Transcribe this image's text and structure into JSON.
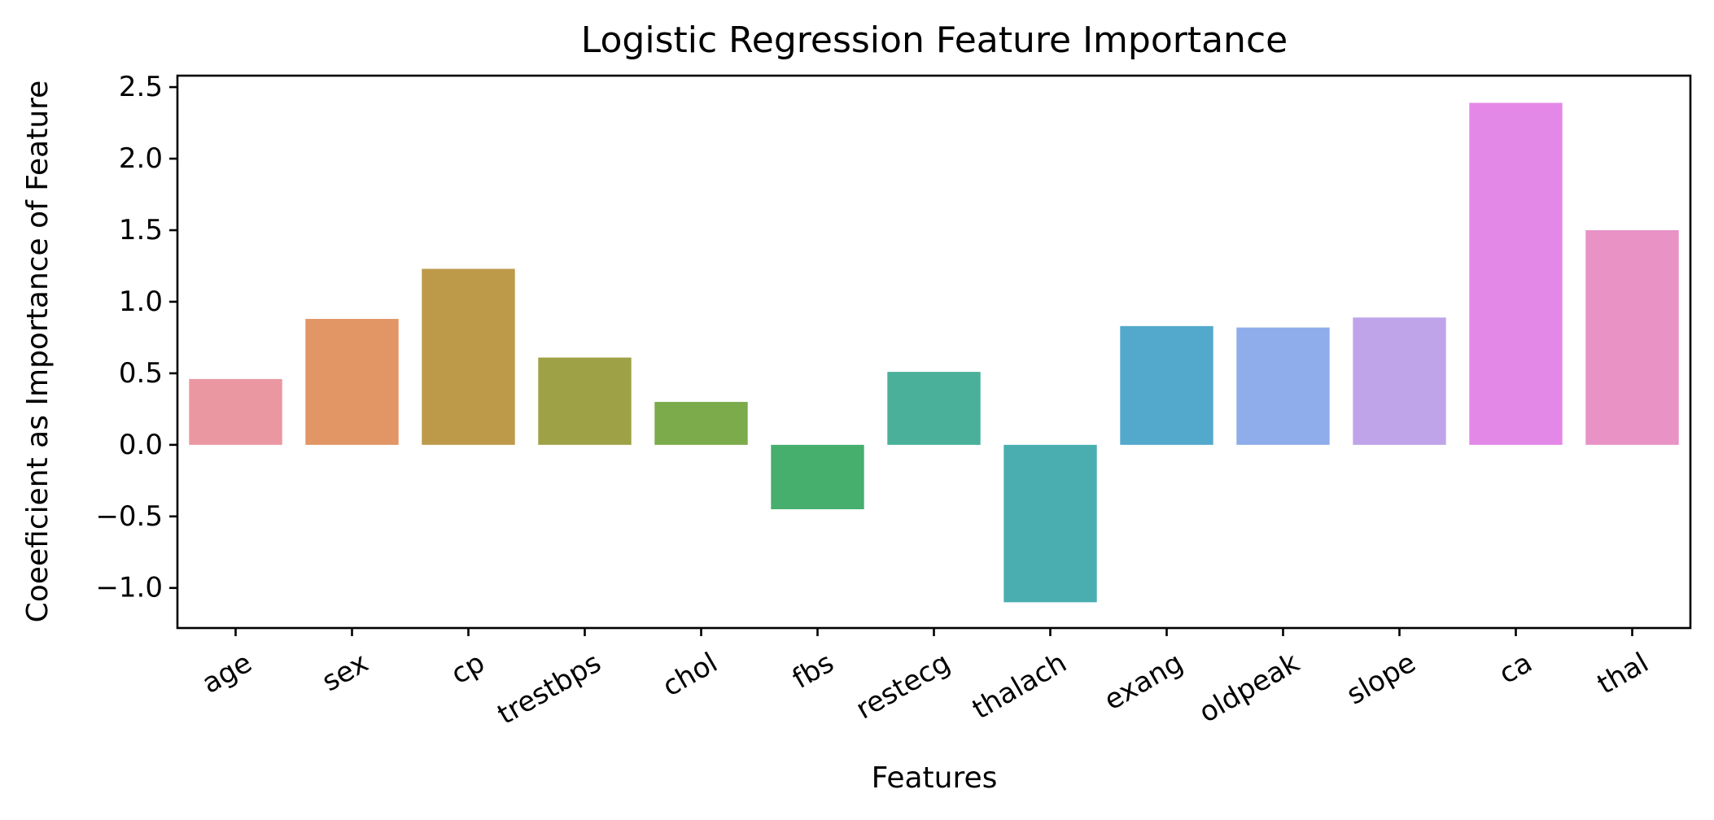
{
  "chart_data": {
    "type": "bar",
    "title": "Logistic Regression Feature Importance",
    "xlabel": "Features",
    "ylabel": "Coeeficient as Importance of Feature",
    "categories": [
      "age",
      "sex",
      "cp",
      "trestbps",
      "chol",
      "fbs",
      "restecg",
      "thalach",
      "exang",
      "oldpeak",
      "slope",
      "ca",
      "thal"
    ],
    "values": [
      0.46,
      0.88,
      1.23,
      0.61,
      0.3,
      -0.45,
      0.51,
      -1.1,
      0.83,
      0.82,
      0.89,
      2.39,
      1.5
    ],
    "colors": [
      "#eb97a1",
      "#e29565",
      "#bd9a4a",
      "#9ea145",
      "#7bab4a",
      "#46af6d",
      "#4ab09a",
      "#4aaeb0",
      "#53a9cc",
      "#8fadea",
      "#c0a4ea",
      "#e488e8",
      "#e892c6"
    ],
    "ylim": [
      -1.28,
      2.58
    ],
    "yticks": [
      -1.0,
      -0.5,
      0.0,
      0.5,
      1.0,
      1.5,
      2.0,
      2.5
    ],
    "ytick_labels": [
      "−1.0",
      "−0.5",
      "0.0",
      "0.5",
      "1.0",
      "1.5",
      "2.0",
      "2.5"
    ],
    "xtick_rotation": -30,
    "grid": false,
    "legend": "none"
  }
}
